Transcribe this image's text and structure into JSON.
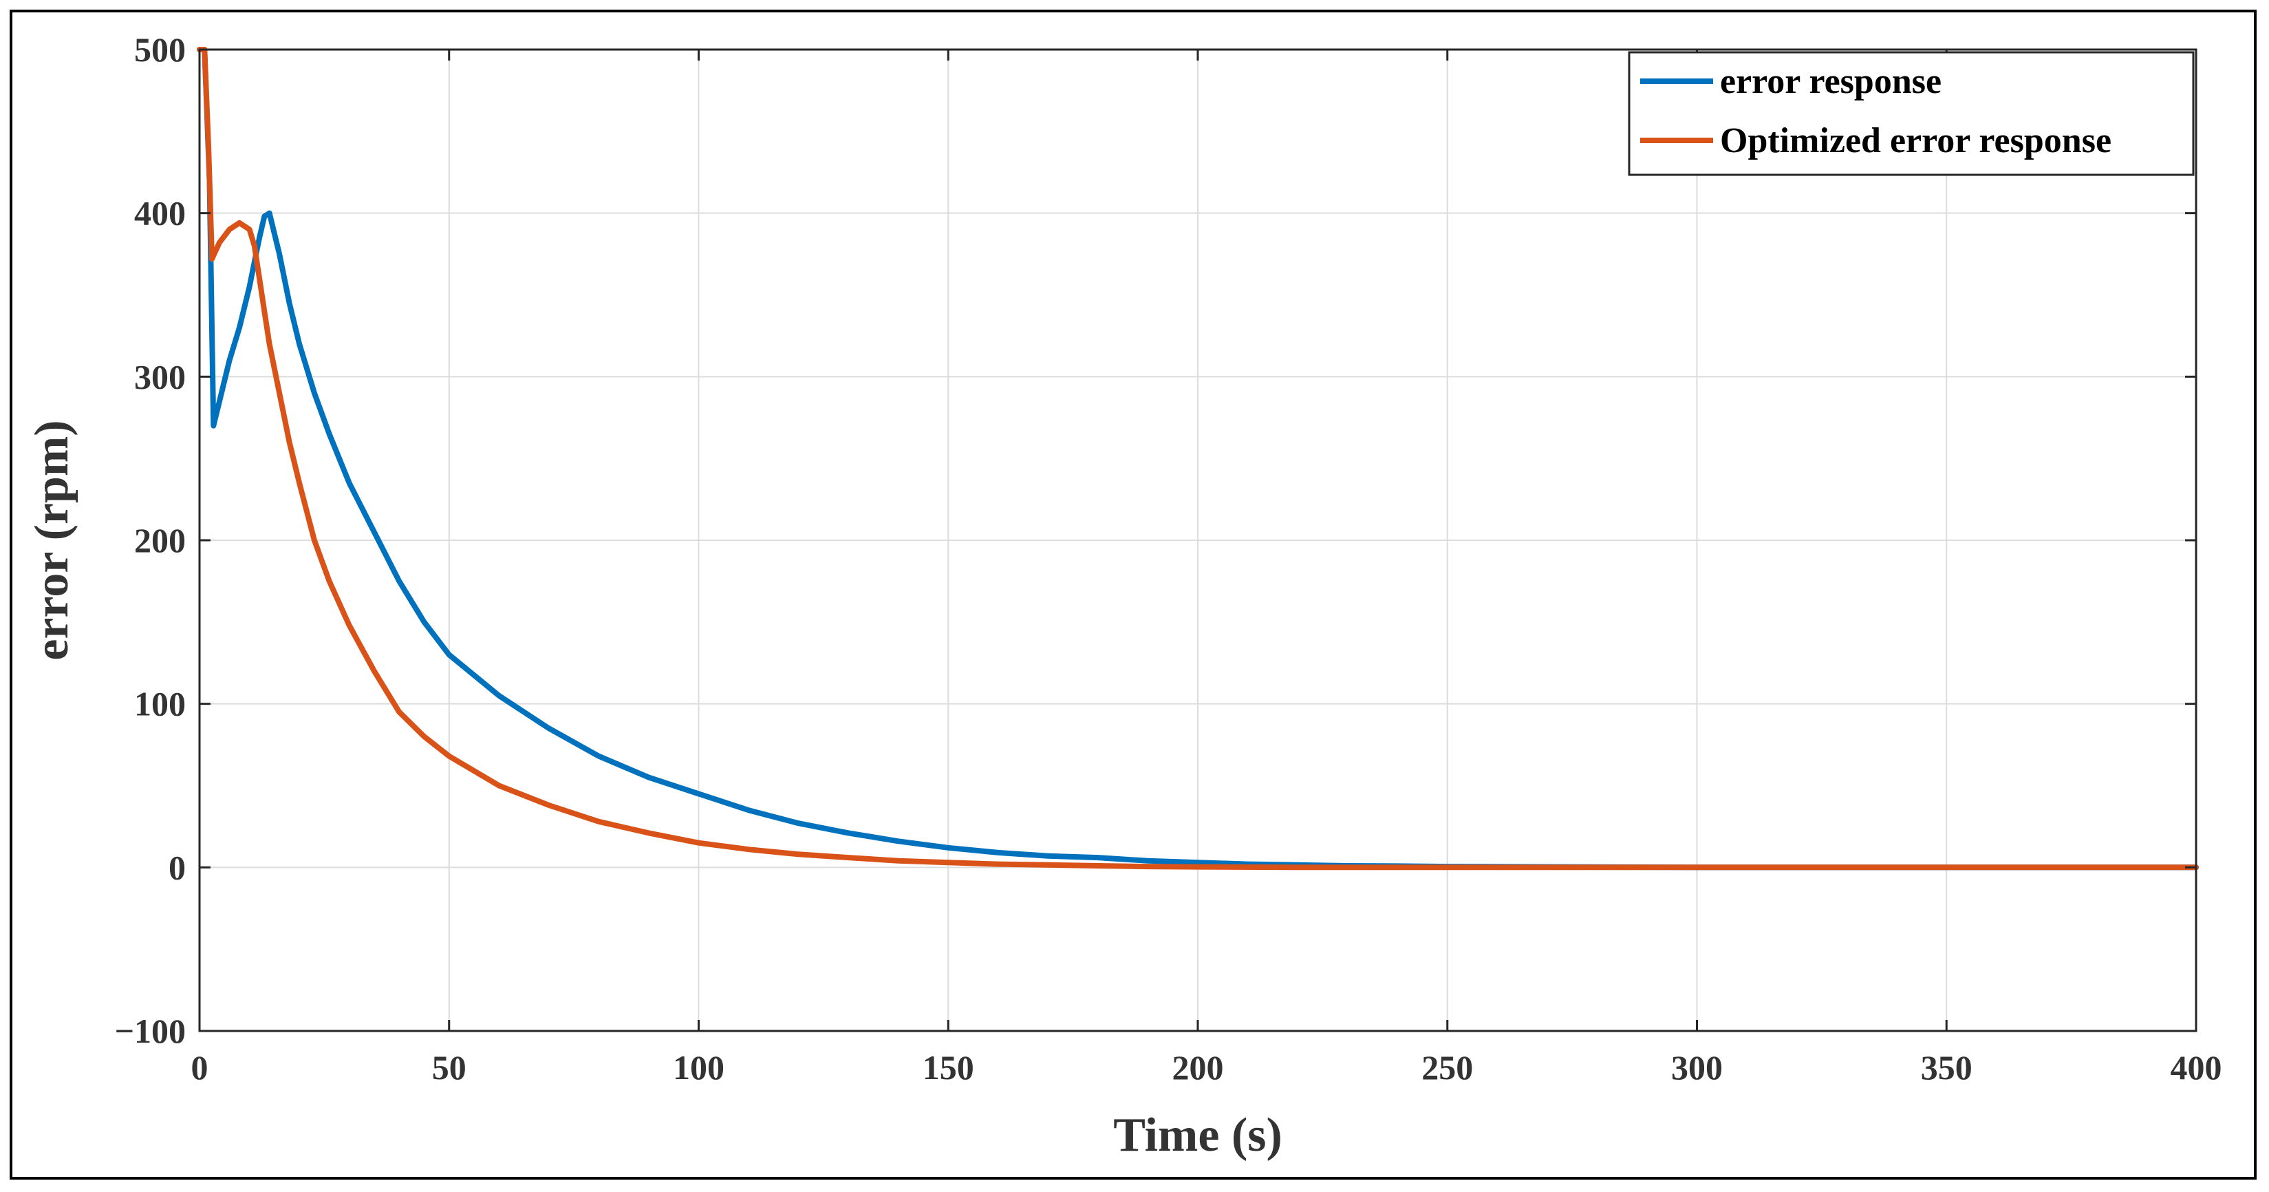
{
  "chart_data": {
    "type": "line",
    "title": "",
    "xlabel": "Time (s)",
    "ylabel": "error (rpm)",
    "xlim": [
      0,
      400
    ],
    "ylim": [
      -100,
      500
    ],
    "xticks": [
      0,
      50,
      100,
      150,
      200,
      250,
      300,
      350,
      400
    ],
    "yticks": [
      -100,
      0,
      100,
      200,
      300,
      400,
      500
    ],
    "xtick_labels": [
      "0",
      "50",
      "100",
      "150",
      "200",
      "250",
      "300",
      "350",
      "400"
    ],
    "ytick_labels": [
      "−100",
      "0",
      "100",
      "200",
      "300",
      "400",
      "500"
    ],
    "grid": true,
    "legend_position": "top-right",
    "series": [
      {
        "name": "error response",
        "color": "#0072BD",
        "x": [
          0,
          1,
          2,
          2.8,
          4,
          6,
          8,
          10,
          11,
          12,
          13,
          14,
          16,
          18,
          20,
          23,
          26,
          30,
          35,
          40,
          45,
          50,
          60,
          70,
          80,
          90,
          100,
          110,
          120,
          130,
          140,
          150,
          160,
          170,
          180,
          190,
          200,
          210,
          220,
          230,
          240,
          250,
          270,
          300,
          330,
          360,
          380,
          400
        ],
        "values": [
          500,
          500,
          420,
          270,
          285,
          310,
          330,
          355,
          370,
          385,
          398,
          400,
          375,
          345,
          320,
          290,
          265,
          235,
          205,
          175,
          150,
          130,
          105,
          85,
          68,
          55,
          45,
          35,
          27,
          21,
          16,
          12,
          9,
          7,
          6,
          4,
          3,
          2,
          1.5,
          1,
          0.8,
          0.5,
          0.3,
          0,
          0,
          0,
          0,
          0
        ]
      },
      {
        "name": "Optimized error response",
        "color": "#D95319",
        "x": [
          0,
          1,
          1.8,
          2.5,
          4,
          6,
          8,
          10,
          11,
          12,
          13,
          14,
          16,
          18,
          20,
          23,
          26,
          30,
          35,
          40,
          45,
          50,
          60,
          70,
          80,
          90,
          100,
          110,
          120,
          130,
          140,
          150,
          160,
          170,
          180,
          190,
          200,
          220,
          250,
          300,
          350,
          400
        ],
        "values": [
          500,
          500,
          440,
          372,
          382,
          390,
          394,
          390,
          380,
          360,
          340,
          320,
          290,
          260,
          235,
          200,
          175,
          148,
          120,
          95,
          80,
          68,
          50,
          38,
          28,
          21,
          15,
          11,
          8,
          6,
          4,
          3,
          2,
          1.5,
          1,
          0.5,
          0.3,
          0,
          0,
          0,
          0,
          0
        ]
      }
    ]
  }
}
